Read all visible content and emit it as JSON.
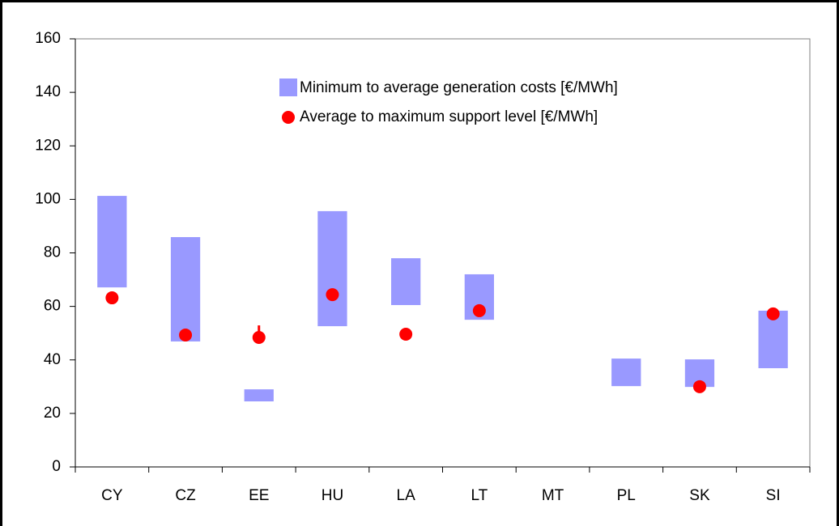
{
  "chart_data": {
    "type": "floating-bar",
    "categories": [
      "CY",
      "CZ",
      "EE",
      "HU",
      "LA",
      "LT",
      "MT",
      "PL",
      "SK",
      "SI"
    ],
    "series": [
      {
        "name": "Minimum to average generation costs [€/MWh]",
        "color": "#9999ff",
        "low": [
          67.1,
          46.9,
          24.5,
          52.6,
          60.5,
          55,
          null,
          30.2,
          29.9,
          36.9
        ],
        "high": [
          101.3,
          85.9,
          29,
          95.6,
          78,
          72,
          null,
          40.5,
          40.2,
          58.4
        ]
      },
      {
        "name": "Average to maximum support level [€/MWh]",
        "color": "#ff0000",
        "values": [
          63.2,
          49.3,
          48.4,
          64.4,
          49.6,
          58.4,
          null,
          null,
          30,
          57.2
        ],
        "max": [
          null,
          null,
          52.9,
          null,
          null,
          null,
          null,
          null,
          null,
          null
        ]
      }
    ],
    "ylim": [
      0,
      160
    ],
    "yticks": [
      0,
      20,
      40,
      60,
      80,
      100,
      120,
      140,
      160
    ]
  }
}
